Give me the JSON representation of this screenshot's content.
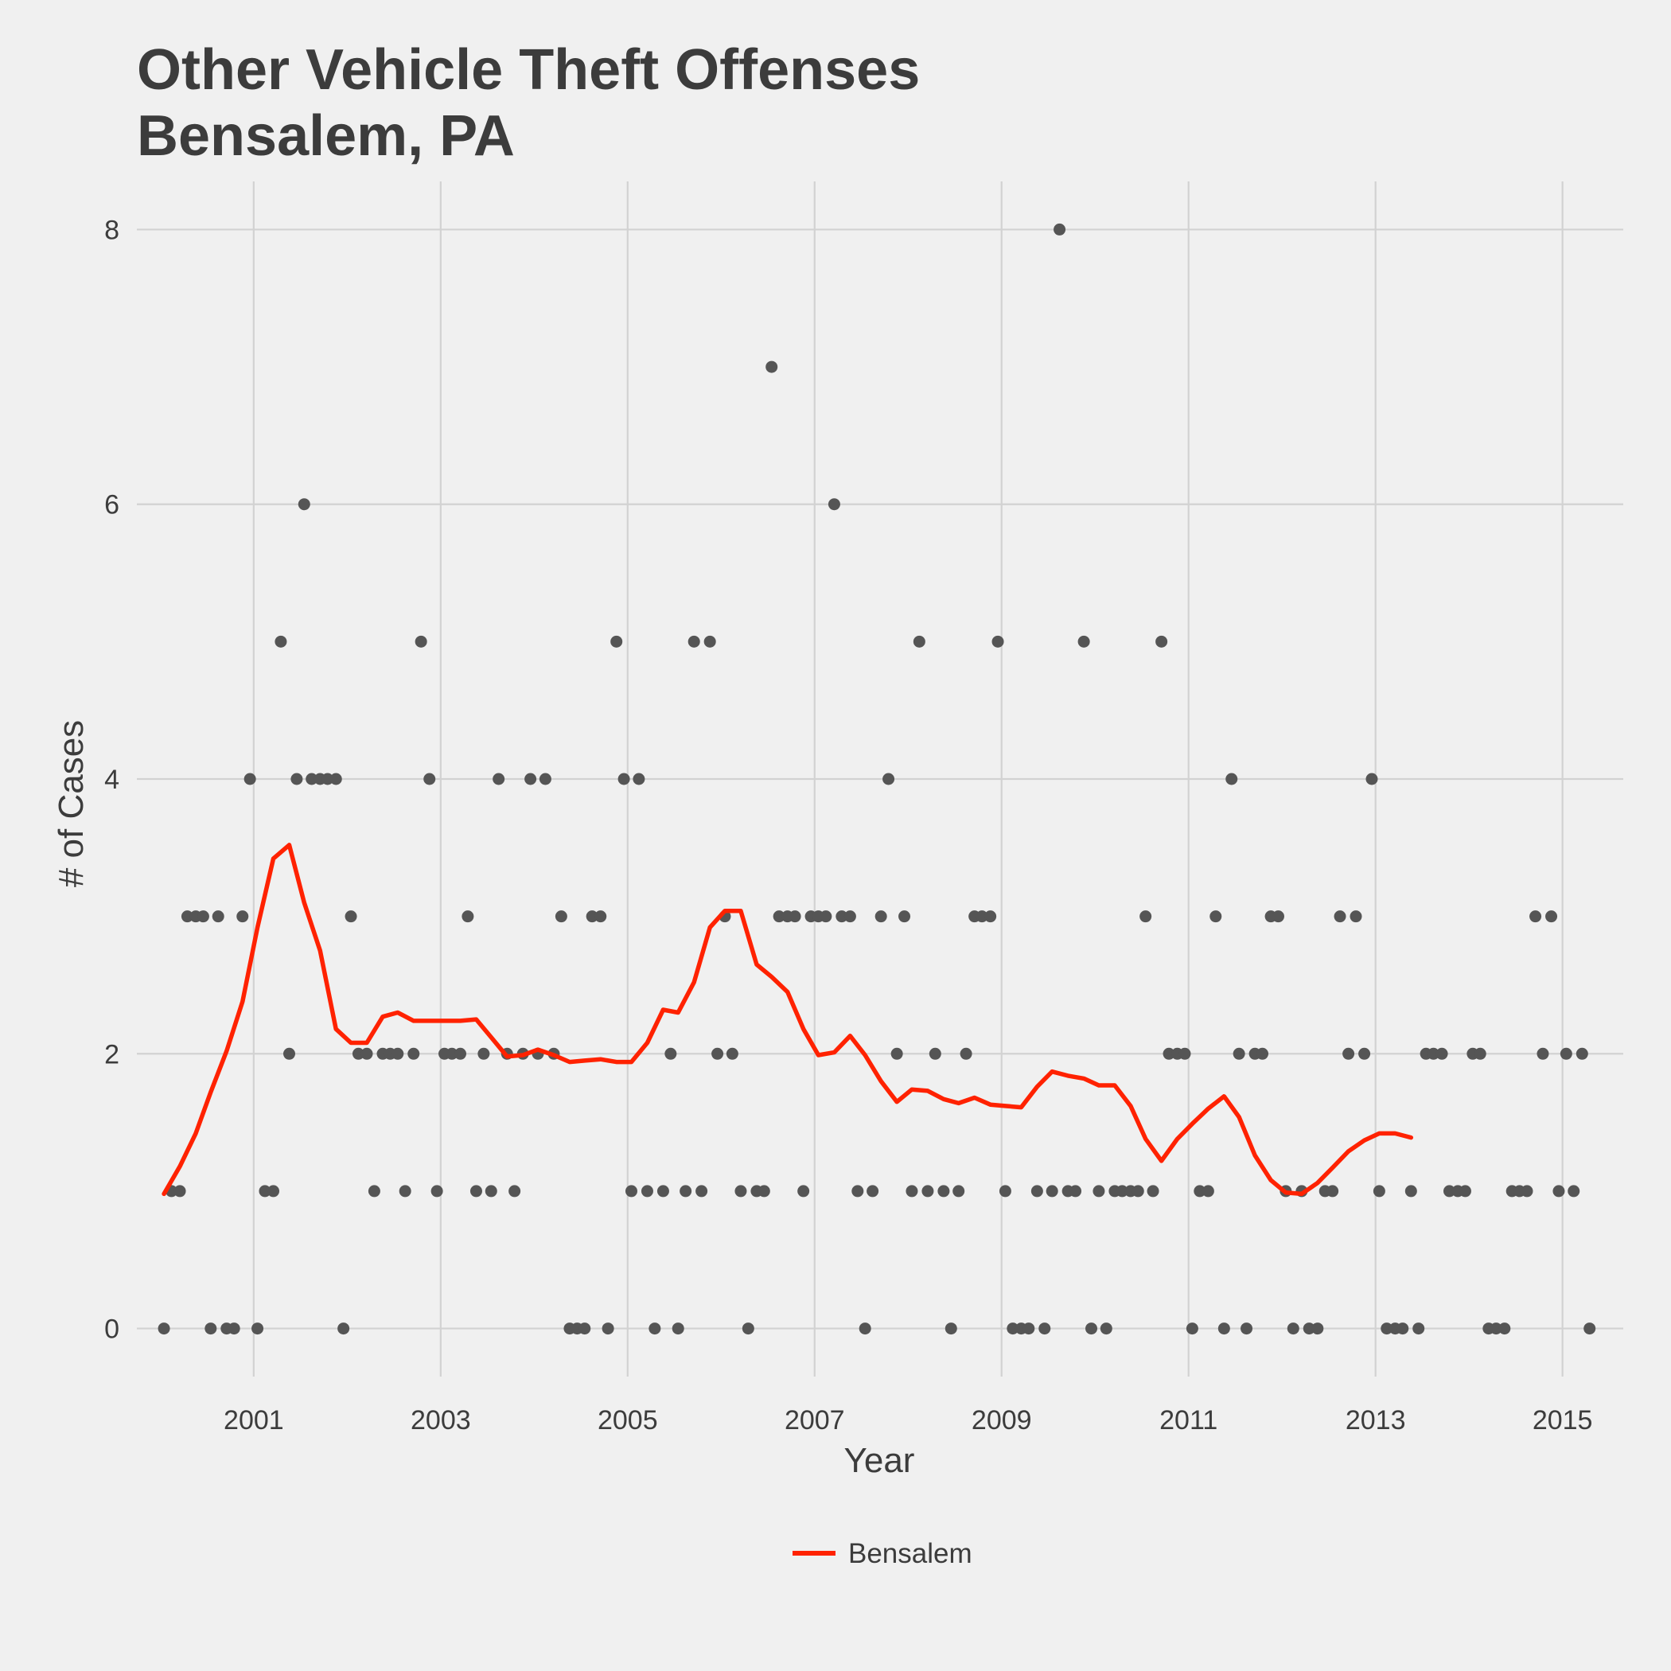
{
  "chart_data": {
    "type": "scatter",
    "title_lines": [
      "Other Vehicle Theft Offenses",
      "Bensalem, PA"
    ],
    "xlabel": "Year",
    "ylabel": "# of Cases",
    "xlim": [
      1999.75,
      2015.65
    ],
    "ylim": [
      -0.35,
      8.35
    ],
    "x_ticks": [
      2001,
      2003,
      2005,
      2007,
      2009,
      2011,
      2013,
      2015
    ],
    "y_ticks": [
      0,
      2,
      4,
      6,
      8
    ],
    "grid": true,
    "legend_position": "bottom",
    "points_color": "#555555",
    "series": [
      {
        "name": "Bensalem",
        "type": "line",
        "color": "#ff2200",
        "points": [
          [
            2000.04,
            0.98
          ],
          [
            2000.21,
            1.18
          ],
          [
            2000.38,
            1.42
          ],
          [
            2000.54,
            1.72
          ],
          [
            2000.71,
            2.02
          ],
          [
            2000.88,
            2.38
          ],
          [
            2001.04,
            2.92
          ],
          [
            2001.21,
            3.42
          ],
          [
            2001.38,
            3.52
          ],
          [
            2001.54,
            3.1
          ],
          [
            2001.71,
            2.75
          ],
          [
            2001.88,
            2.18
          ],
          [
            2002.04,
            2.08
          ],
          [
            2002.21,
            2.08
          ],
          [
            2002.38,
            2.27
          ],
          [
            2002.54,
            2.3
          ],
          [
            2002.71,
            2.24
          ],
          [
            2002.88,
            2.24
          ],
          [
            2003.04,
            2.24
          ],
          [
            2003.21,
            2.24
          ],
          [
            2003.38,
            2.25
          ],
          [
            2003.54,
            2.12
          ],
          [
            2003.71,
            1.98
          ],
          [
            2003.88,
            1.99
          ],
          [
            2004.04,
            2.03
          ],
          [
            2004.21,
            1.99
          ],
          [
            2004.38,
            1.94
          ],
          [
            2004.54,
            1.95
          ],
          [
            2004.71,
            1.96
          ],
          [
            2004.88,
            1.94
          ],
          [
            2005.04,
            1.94
          ],
          [
            2005.21,
            2.08
          ],
          [
            2005.38,
            2.32
          ],
          [
            2005.54,
            2.3
          ],
          [
            2005.71,
            2.52
          ],
          [
            2005.88,
            2.92
          ],
          [
            2006.04,
            3.04
          ],
          [
            2006.21,
            3.04
          ],
          [
            2006.38,
            2.65
          ],
          [
            2006.54,
            2.56
          ],
          [
            2006.71,
            2.45
          ],
          [
            2006.88,
            2.18
          ],
          [
            2007.04,
            1.99
          ],
          [
            2007.21,
            2.01
          ],
          [
            2007.38,
            2.13
          ],
          [
            2007.54,
            1.99
          ],
          [
            2007.71,
            1.8
          ],
          [
            2007.88,
            1.65
          ],
          [
            2008.04,
            1.74
          ],
          [
            2008.21,
            1.73
          ],
          [
            2008.38,
            1.67
          ],
          [
            2008.54,
            1.64
          ],
          [
            2008.71,
            1.68
          ],
          [
            2008.88,
            1.63
          ],
          [
            2009.04,
            1.62
          ],
          [
            2009.21,
            1.61
          ],
          [
            2009.38,
            1.76
          ],
          [
            2009.54,
            1.87
          ],
          [
            2009.71,
            1.84
          ],
          [
            2009.88,
            1.82
          ],
          [
            2010.04,
            1.77
          ],
          [
            2010.21,
            1.77
          ],
          [
            2010.38,
            1.62
          ],
          [
            2010.54,
            1.38
          ],
          [
            2010.71,
            1.22
          ],
          [
            2010.88,
            1.38
          ],
          [
            2011.04,
            1.49
          ],
          [
            2011.21,
            1.6
          ],
          [
            2011.38,
            1.69
          ],
          [
            2011.54,
            1.54
          ],
          [
            2011.71,
            1.26
          ],
          [
            2011.88,
            1.08
          ],
          [
            2012.04,
            0.99
          ],
          [
            2012.21,
            0.98
          ],
          [
            2012.38,
            1.06
          ],
          [
            2012.54,
            1.17
          ],
          [
            2012.71,
            1.29
          ],
          [
            2012.88,
            1.37
          ],
          [
            2013.04,
            1.42
          ],
          [
            2013.21,
            1.42
          ],
          [
            2013.38,
            1.39
          ]
        ]
      }
    ],
    "points": [
      [
        2000.04,
        0
      ],
      [
        2000.12,
        1
      ],
      [
        2000.21,
        1
      ],
      [
        2000.29,
        3
      ],
      [
        2000.38,
        3
      ],
      [
        2000.46,
        3
      ],
      [
        2000.54,
        0
      ],
      [
        2000.62,
        3
      ],
      [
        2000.71,
        0
      ],
      [
        2000.79,
        0
      ],
      [
        2000.88,
        3
      ],
      [
        2000.96,
        4
      ],
      [
        2001.04,
        0
      ],
      [
        2001.12,
        1
      ],
      [
        2001.21,
        1
      ],
      [
        2001.29,
        5
      ],
      [
        2001.38,
        2
      ],
      [
        2001.46,
        4
      ],
      [
        2001.54,
        6
      ],
      [
        2001.62,
        4
      ],
      [
        2001.71,
        4
      ],
      [
        2001.79,
        4
      ],
      [
        2001.88,
        4
      ],
      [
        2001.96,
        0
      ],
      [
        2002.04,
        3
      ],
      [
        2002.12,
        2
      ],
      [
        2002.21,
        2
      ],
      [
        2002.29,
        1
      ],
      [
        2002.38,
        2
      ],
      [
        2002.46,
        2
      ],
      [
        2002.54,
        2
      ],
      [
        2002.62,
        1
      ],
      [
        2002.71,
        2
      ],
      [
        2002.79,
        5
      ],
      [
        2002.88,
        4
      ],
      [
        2002.96,
        1
      ],
      [
        2003.04,
        2
      ],
      [
        2003.12,
        2
      ],
      [
        2003.21,
        2
      ],
      [
        2003.29,
        3
      ],
      [
        2003.38,
        1
      ],
      [
        2003.46,
        2
      ],
      [
        2003.54,
        1
      ],
      [
        2003.62,
        4
      ],
      [
        2003.71,
        2
      ],
      [
        2003.79,
        1
      ],
      [
        2003.88,
        2
      ],
      [
        2003.96,
        4
      ],
      [
        2004.04,
        2
      ],
      [
        2004.12,
        4
      ],
      [
        2004.21,
        2
      ],
      [
        2004.29,
        3
      ],
      [
        2004.38,
        0
      ],
      [
        2004.46,
        0
      ],
      [
        2004.54,
        0
      ],
      [
        2004.62,
        3
      ],
      [
        2004.71,
        3
      ],
      [
        2004.79,
        0
      ],
      [
        2004.88,
        5
      ],
      [
        2004.96,
        4
      ],
      [
        2005.04,
        1
      ],
      [
        2005.12,
        4
      ],
      [
        2005.21,
        1
      ],
      [
        2005.29,
        0
      ],
      [
        2005.38,
        1
      ],
      [
        2005.46,
        2
      ],
      [
        2005.54,
        0
      ],
      [
        2005.62,
        1
      ],
      [
        2005.71,
        5
      ],
      [
        2005.79,
        1
      ],
      [
        2005.88,
        5
      ],
      [
        2005.96,
        2
      ],
      [
        2006.04,
        3
      ],
      [
        2006.12,
        2
      ],
      [
        2006.21,
        1
      ],
      [
        2006.29,
        0
      ],
      [
        2006.38,
        1
      ],
      [
        2006.46,
        1
      ],
      [
        2006.54,
        7
      ],
      [
        2006.62,
        3
      ],
      [
        2006.71,
        3
      ],
      [
        2006.79,
        3
      ],
      [
        2006.88,
        1
      ],
      [
        2006.96,
        3
      ],
      [
        2007.04,
        3
      ],
      [
        2007.12,
        3
      ],
      [
        2007.21,
        6
      ],
      [
        2007.29,
        3
      ],
      [
        2007.38,
        3
      ],
      [
        2007.46,
        1
      ],
      [
        2007.54,
        0
      ],
      [
        2007.62,
        1
      ],
      [
        2007.71,
        3
      ],
      [
        2007.79,
        4
      ],
      [
        2007.88,
        2
      ],
      [
        2007.96,
        3
      ],
      [
        2008.04,
        1
      ],
      [
        2008.12,
        5
      ],
      [
        2008.21,
        1
      ],
      [
        2008.29,
        2
      ],
      [
        2008.38,
        1
      ],
      [
        2008.46,
        0
      ],
      [
        2008.54,
        1
      ],
      [
        2008.62,
        2
      ],
      [
        2008.71,
        3
      ],
      [
        2008.79,
        3
      ],
      [
        2008.88,
        3
      ],
      [
        2008.96,
        5
      ],
      [
        2009.04,
        1
      ],
      [
        2009.12,
        0
      ],
      [
        2009.21,
        0
      ],
      [
        2009.29,
        0
      ],
      [
        2009.38,
        1
      ],
      [
        2009.46,
        0
      ],
      [
        2009.54,
        1
      ],
      [
        2009.62,
        8
      ],
      [
        2009.71,
        1
      ],
      [
        2009.79,
        1
      ],
      [
        2009.88,
        5
      ],
      [
        2009.96,
        0
      ],
      [
        2010.04,
        1
      ],
      [
        2010.12,
        0
      ],
      [
        2010.21,
        1
      ],
      [
        2010.29,
        1
      ],
      [
        2010.38,
        1
      ],
      [
        2010.46,
        1
      ],
      [
        2010.54,
        3
      ],
      [
        2010.62,
        1
      ],
      [
        2010.71,
        5
      ],
      [
        2010.79,
        2
      ],
      [
        2010.88,
        2
      ],
      [
        2010.96,
        2
      ],
      [
        2011.04,
        0
      ],
      [
        2011.12,
        1
      ],
      [
        2011.21,
        1
      ],
      [
        2011.29,
        3
      ],
      [
        2011.38,
        0
      ],
      [
        2011.46,
        4
      ],
      [
        2011.54,
        2
      ],
      [
        2011.62,
        0
      ],
      [
        2011.71,
        2
      ],
      [
        2011.79,
        2
      ],
      [
        2011.88,
        3
      ],
      [
        2011.96,
        3
      ],
      [
        2012.04,
        1
      ],
      [
        2012.12,
        0
      ],
      [
        2012.21,
        1
      ],
      [
        2012.29,
        0
      ],
      [
        2012.38,
        0
      ],
      [
        2012.46,
        1
      ],
      [
        2012.54,
        1
      ],
      [
        2012.62,
        3
      ],
      [
        2012.71,
        2
      ],
      [
        2012.79,
        3
      ],
      [
        2012.88,
        2
      ],
      [
        2012.96,
        4
      ],
      [
        2013.04,
        1
      ],
      [
        2013.12,
        0
      ],
      [
        2013.21,
        0
      ],
      [
        2013.29,
        0
      ],
      [
        2013.38,
        1
      ],
      [
        2013.46,
        0
      ],
      [
        2013.54,
        2
      ],
      [
        2013.62,
        2
      ],
      [
        2013.71,
        2
      ],
      [
        2013.79,
        1
      ],
      [
        2013.88,
        1
      ],
      [
        2013.96,
        1
      ],
      [
        2014.04,
        2
      ],
      [
        2014.12,
        2
      ],
      [
        2014.21,
        0
      ],
      [
        2014.29,
        0
      ],
      [
        2014.38,
        0
      ],
      [
        2014.46,
        1
      ],
      [
        2014.54,
        1
      ],
      [
        2014.62,
        1
      ],
      [
        2014.71,
        3
      ],
      [
        2014.79,
        2
      ],
      [
        2014.88,
        3
      ],
      [
        2014.96,
        1
      ],
      [
        2015.04,
        2
      ],
      [
        2015.12,
        1
      ],
      [
        2015.21,
        2
      ],
      [
        2015.29,
        0
      ]
    ]
  }
}
